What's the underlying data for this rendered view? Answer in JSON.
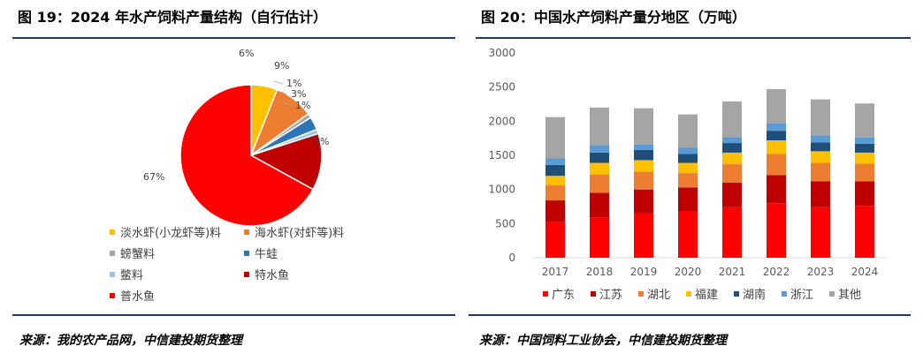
{
  "left_panel": {
    "title": "图 19：2024 年水产饲料产量结构（自行估计）",
    "source": "来源：我的农产品网，中信建投期货整理"
  },
  "right_panel": {
    "title": "图 20：中国水产饲料产量分地区（万吨）",
    "source": "来源：中国饲料工业协会，中信建投期货整理"
  },
  "chart_data": [
    {
      "type": "pie",
      "title": "",
      "slices": [
        {
          "name": "淡水虾(小龙虾等)料",
          "value": 6,
          "label": "6%",
          "color": "#FFC000"
        },
        {
          "name": "海水虾(对虾等)料",
          "value": 9,
          "label": "9%",
          "color": "#ED7D31"
        },
        {
          "name": "螃蟹料",
          "value": 1,
          "label": "1%",
          "color": "#A5A5A5"
        },
        {
          "name": "牛蛙",
          "value": 3,
          "label": "3%",
          "color": "#2E75B6"
        },
        {
          "name": "鳖料",
          "value": 1,
          "label": "1%",
          "color": "#9DC3E6"
        },
        {
          "name": "特水鱼",
          "value": 13,
          "label": "13%",
          "color": "#C00000"
        },
        {
          "name": "普水鱼",
          "value": 67,
          "label": "67%",
          "color": "#FF0000"
        }
      ],
      "legend_position": "bottom"
    },
    {
      "type": "bar",
      "stacked": true,
      "title": "",
      "categories": [
        "2017",
        "2018",
        "2019",
        "2020",
        "2021",
        "2022",
        "2023",
        "2024"
      ],
      "yticks": [
        "0",
        "500",
        "1000",
        "1500",
        "2000",
        "2500",
        "3000"
      ],
      "ylim": [
        0,
        3000
      ],
      "legend_position": "bottom",
      "series": [
        {
          "name": "广东",
          "color": "#FF0000",
          "values": [
            520,
            590,
            660,
            680,
            740,
            800,
            740,
            760
          ]
        },
        {
          "name": "江苏",
          "color": "#C00000",
          "values": [
            320,
            360,
            340,
            350,
            360,
            410,
            380,
            360
          ]
        },
        {
          "name": "湖北",
          "color": "#ED7D31",
          "values": [
            220,
            270,
            260,
            210,
            270,
            310,
            270,
            260
          ]
        },
        {
          "name": "福建",
          "color": "#FFC000",
          "values": [
            140,
            170,
            170,
            150,
            170,
            200,
            170,
            160
          ]
        },
        {
          "name": "湖南",
          "color": "#1F4E79",
          "values": [
            160,
            150,
            150,
            130,
            140,
            140,
            130,
            130
          ]
        },
        {
          "name": "浙江",
          "color": "#5B9BD5",
          "values": [
            100,
            110,
            80,
            90,
            90,
            110,
            100,
            90
          ]
        },
        {
          "name": "其他",
          "color": "#A5A5A5",
          "values": [
            600,
            550,
            530,
            490,
            520,
            500,
            530,
            500
          ]
        }
      ]
    }
  ]
}
